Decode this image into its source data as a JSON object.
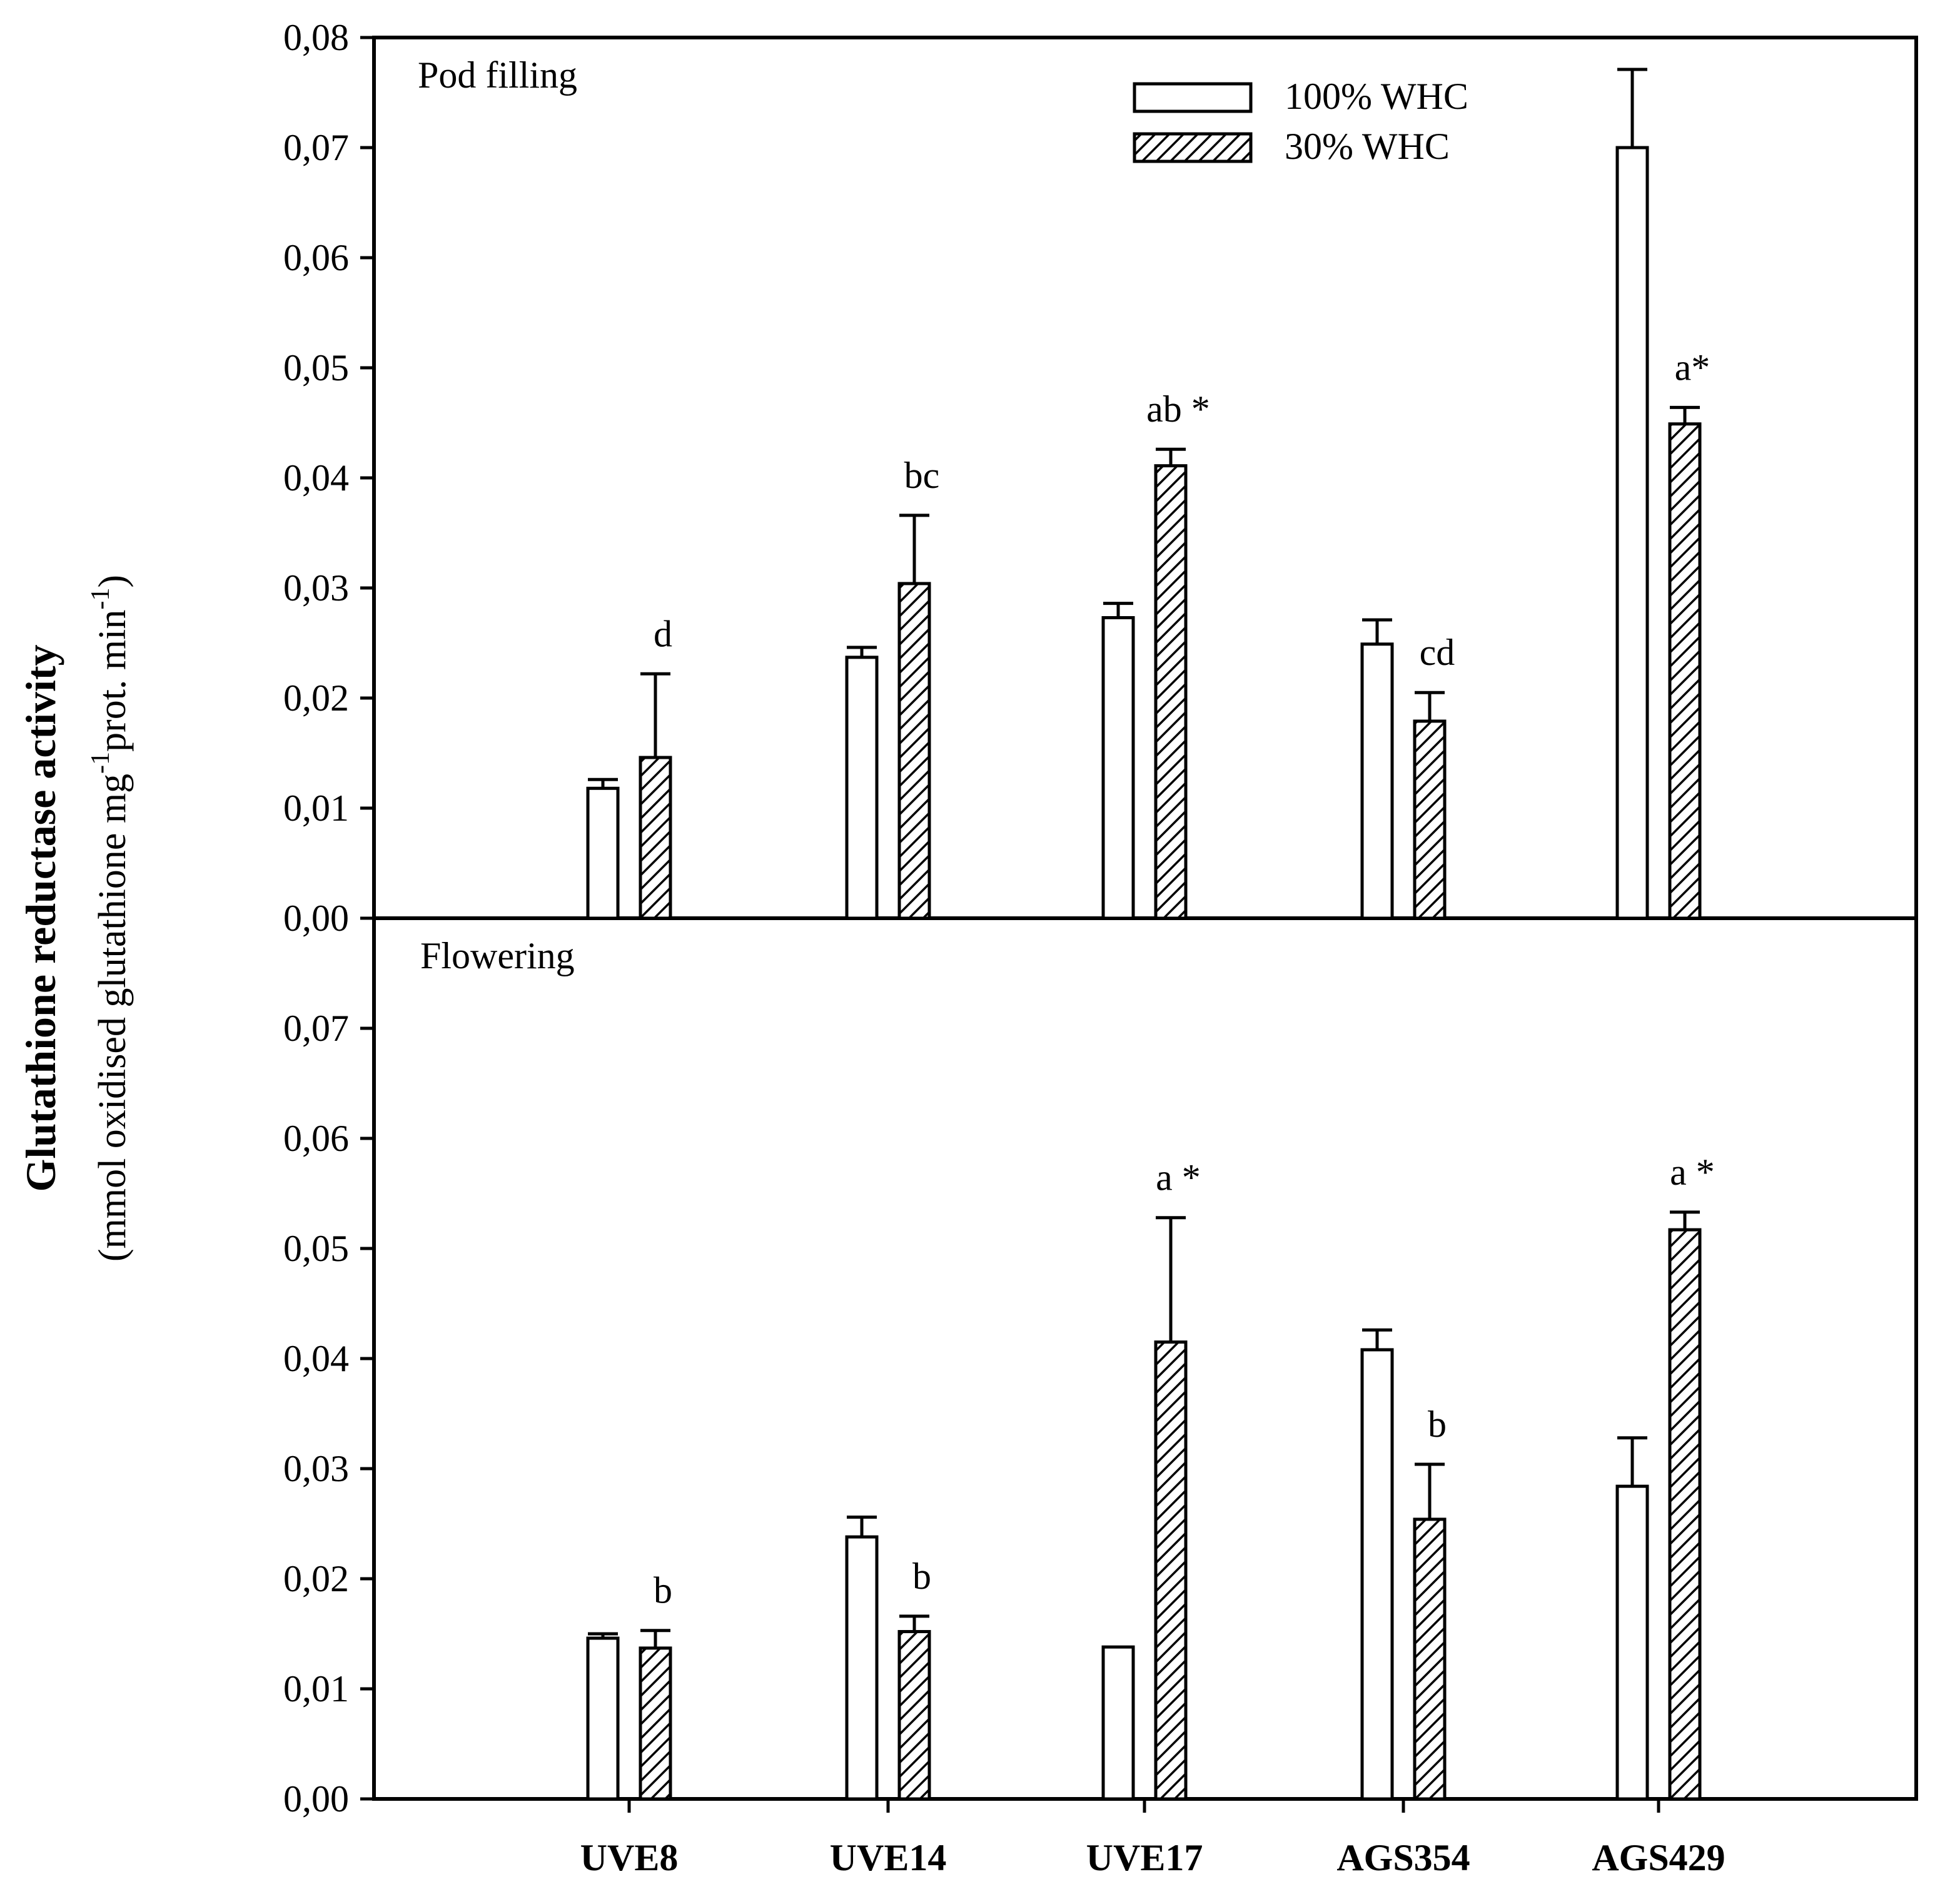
{
  "chart_data": [
    {
      "type": "bar",
      "panel_label": "Pod filling",
      "categories": [
        "UVE8",
        "UVE14",
        "UVE17",
        "AGS354",
        "AGS429"
      ],
      "ylim": [
        0,
        0.08
      ],
      "yticks": [
        "0,00",
        "0,01",
        "0,02",
        "0,03",
        "0,04",
        "0,05",
        "0,06",
        "0,07",
        "0,08"
      ],
      "series": [
        {
          "name": "100% WHC",
          "values": [
            0.0118,
            0.0237,
            0.0273,
            0.0249,
            0.07
          ],
          "errors": [
            0.0008,
            0.0009,
            0.0013,
            0.0022,
            0.0071
          ]
        },
        {
          "name": "30% WHC",
          "values": [
            0.0146,
            0.0304,
            0.0411,
            0.0179,
            0.0449
          ],
          "errors": [
            0.0076,
            0.0062,
            0.0015,
            0.0026,
            0.0015
          ]
        }
      ],
      "annotations": [
        "d",
        "bc",
        "ab *",
        "cd",
        "a*"
      ]
    },
    {
      "type": "bar",
      "panel_label": "Flowering",
      "categories": [
        "UVE8",
        "UVE14",
        "UVE17",
        "AGS354",
        "AGS429"
      ],
      "ylim": [
        0,
        0.08
      ],
      "yticks": [
        "0,00",
        "0,01",
        "0,02",
        "0,03",
        "0,04",
        "0,05",
        "0,06",
        "0,07"
      ],
      "series": [
        {
          "name": "100% WHC",
          "values": [
            0.0146,
            0.0238,
            0.0138,
            0.0408,
            0.0284
          ],
          "errors": [
            0.0004,
            0.0018,
            0.0,
            0.0018,
            0.0044
          ]
        },
        {
          "name": "30% WHC",
          "values": [
            0.0137,
            0.0152,
            0.0415,
            0.0254,
            0.0517
          ],
          "errors": [
            0.0016,
            0.0014,
            0.0113,
            0.005,
            0.0016
          ]
        }
      ],
      "annotations": [
        "b",
        "b",
        "a *",
        "b",
        "a *"
      ]
    }
  ],
  "axes": {
    "ylabel_main": "Glutathione reductase activity",
    "ylabel_unit_prefix": "(mmol oxidised glutathione mg",
    "ylabel_unit_sup1": "-1",
    "ylabel_unit_mid": "prot. min",
    "ylabel_unit_sup2": "-1",
    "ylabel_unit_suffix": ")"
  },
  "legend": {
    "placement": "top-right of upper panel",
    "items": [
      "100% WHC",
      "30% WHC"
    ]
  },
  "style": {
    "bar_fill": "#ffffff",
    "stroke": "#000000",
    "hatch": "diagonal"
  }
}
